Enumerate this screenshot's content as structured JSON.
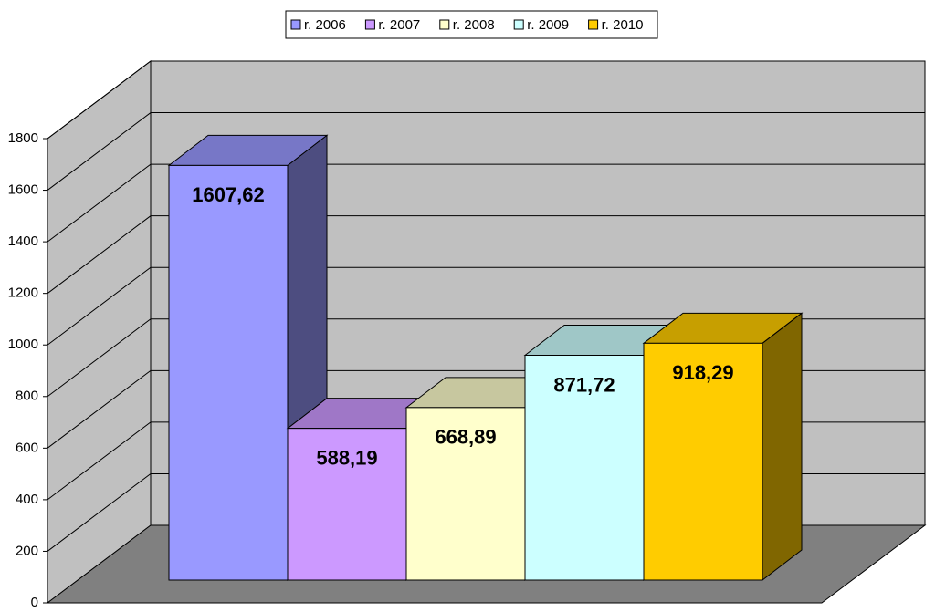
{
  "chart_data": {
    "type": "bar3d",
    "series": [
      {
        "name": "r. 2006",
        "color": "#9999ff",
        "values": [
          1607.62
        ],
        "value_labels": [
          "1607,62"
        ]
      },
      {
        "name": "r. 2007",
        "color": "#cc99ff",
        "values": [
          588.19
        ],
        "value_labels": [
          "588,19"
        ]
      },
      {
        "name": "r. 2008",
        "color": "#ffffcc",
        "values": [
          668.89
        ],
        "value_labels": [
          "668,89"
        ]
      },
      {
        "name": "r. 2009",
        "color": "#ccffff",
        "values": [
          871.72
        ],
        "value_labels": [
          "871,72"
        ]
      },
      {
        "name": "r. 2010",
        "color": "#ffcc00",
        "values": [
          918.29
        ],
        "value_labels": [
          "918,29"
        ]
      }
    ],
    "ylim": [
      0,
      1800
    ],
    "yticks": [
      0,
      200,
      400,
      600,
      800,
      1000,
      1200,
      1400,
      1600,
      1800
    ],
    "grid": true,
    "legend": "top"
  }
}
